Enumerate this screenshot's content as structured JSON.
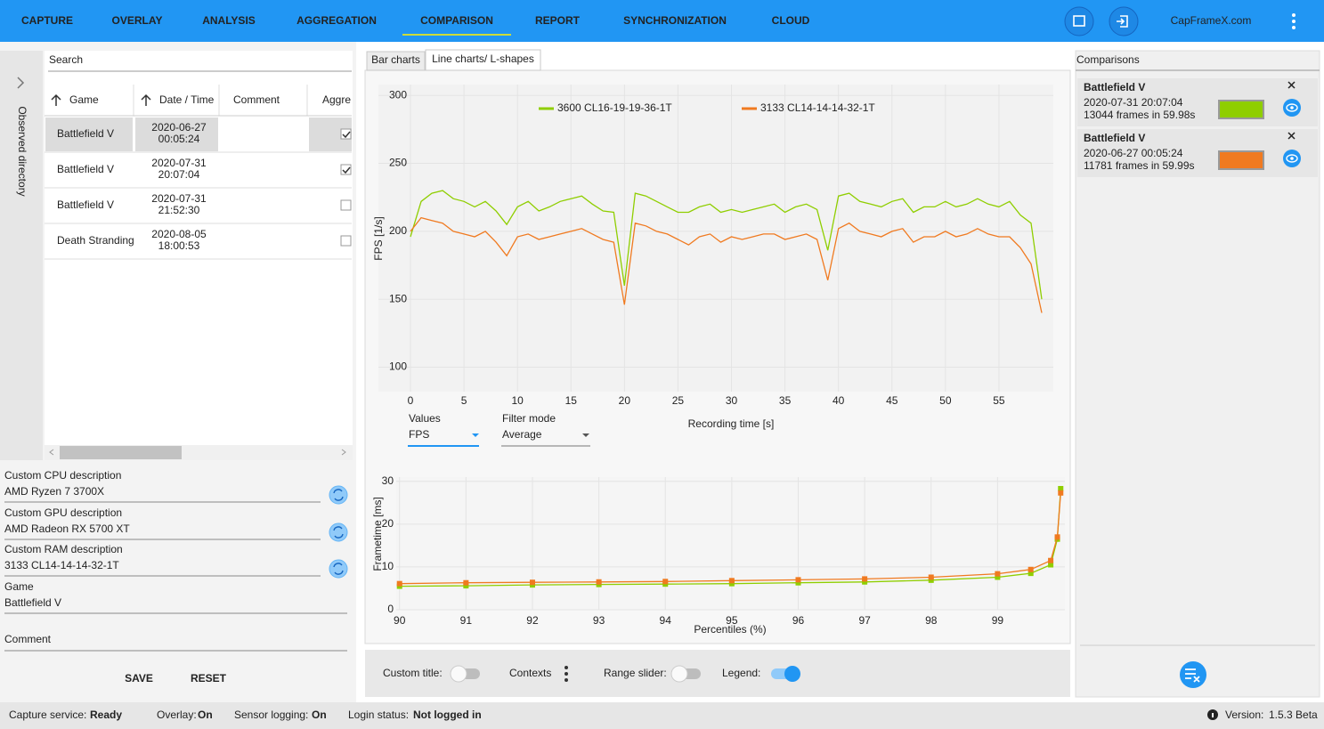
{
  "nav": {
    "tabs": [
      "CAPTURE",
      "OVERLAY",
      "ANALYSIS",
      "AGGREGATION",
      "COMPARISON",
      "REPORT",
      "SYNCHRONIZATION",
      "CLOUD"
    ],
    "active": 4,
    "brand": "CapFrameX.com"
  },
  "left": {
    "side_label": "Observed directory",
    "search": "Search",
    "columns": [
      "Game",
      "Date / Time",
      "Comment",
      "Aggre"
    ],
    "selected_row": 0,
    "rows": [
      {
        "game": "Battlefield V",
        "date": "2020-06-27",
        "time": "00:05:24",
        "checked": true
      },
      {
        "game": "Battlefield V",
        "date": "2020-07-31",
        "time": "20:07:04",
        "checked": true
      },
      {
        "game": "Battlefield V",
        "date": "2020-07-31",
        "time": "21:52:30",
        "checked": false
      },
      {
        "game": "Death Stranding",
        "date": "2020-08-05",
        "time": "18:00:53",
        "checked": false
      }
    ],
    "fields": [
      {
        "label": "Custom CPU description",
        "value": "AMD Ryzen 7 3700X"
      },
      {
        "label": "Custom GPU description",
        "value": "AMD Radeon RX 5700 XT"
      },
      {
        "label": "Custom RAM description",
        "value": "3133 CL14-14-14-32-1T"
      },
      {
        "label": "Game",
        "value": "Battlefield V"
      }
    ],
    "comment_placeholder": "Comment",
    "buttons": [
      "SAVE",
      "RESET"
    ]
  },
  "center": {
    "tabs": [
      "Bar charts",
      "Line charts/ L-shapes"
    ],
    "active_tab": 1,
    "values_label": "Values",
    "values_choice": "FPS",
    "filter_label": "Filter mode",
    "filter_choice": "Average",
    "toolbar": {
      "custom_title": {
        "label": "Custom title:",
        "on": false
      },
      "contexts": "Contexts",
      "range_slider": {
        "label": "Range slider:",
        "on": false
      },
      "legend": {
        "label": "Legend:",
        "on": true
      }
    }
  },
  "chart_data": [
    {
      "type": "line",
      "xlabel": "Recording time [s]",
      "ylabel": "FPS [1/s]",
      "legend": "top",
      "grid": true,
      "x": [
        0,
        1,
        2,
        3,
        4,
        5,
        6,
        7,
        8,
        9,
        10,
        11,
        12,
        13,
        14,
        15,
        16,
        17,
        18,
        19,
        20,
        21,
        22,
        23,
        24,
        25,
        26,
        27,
        28,
        29,
        30,
        31,
        32,
        33,
        34,
        35,
        36,
        37,
        38,
        39,
        40,
        41,
        42,
        43,
        44,
        45,
        46,
        47,
        48,
        49,
        50,
        51,
        52,
        53,
        54,
        55,
        56,
        57,
        58,
        59
      ],
      "xlim": [
        0,
        60
      ],
      "xticks": [
        0,
        5,
        10,
        15,
        20,
        25,
        30,
        35,
        40,
        45,
        50,
        55
      ],
      "ylim": [
        82,
        308
      ],
      "yticks": [
        100,
        150,
        200,
        250,
        300
      ],
      "series": [
        {
          "name": "3600 CL16-19-19-36-1T",
          "color": "#8fce00",
          "values": [
            196,
            222,
            228,
            230,
            224,
            222,
            218,
            222,
            215,
            205,
            218,
            222,
            215,
            218,
            222,
            224,
            226,
            220,
            215,
            214,
            160,
            228,
            226,
            222,
            218,
            214,
            214,
            218,
            220,
            214,
            216,
            214,
            216,
            218,
            220,
            214,
            218,
            220,
            216,
            186,
            226,
            228,
            222,
            220,
            218,
            222,
            224,
            214,
            218,
            218,
            222,
            218,
            220,
            224,
            220,
            218,
            222,
            212,
            206,
            150
          ]
        },
        {
          "name": "3133 CL14-14-14-32-1T",
          "color": "#f07a20",
          "values": [
            200,
            210,
            208,
            206,
            200,
            198,
            196,
            200,
            192,
            182,
            196,
            198,
            194,
            196,
            198,
            200,
            202,
            198,
            194,
            192,
            146,
            206,
            204,
            200,
            198,
            194,
            190,
            196,
            198,
            192,
            196,
            194,
            196,
            198,
            198,
            194,
            196,
            198,
            194,
            164,
            202,
            206,
            200,
            198,
            196,
            200,
            202,
            192,
            196,
            196,
            200,
            196,
            198,
            202,
            198,
            196,
            196,
            188,
            176,
            140
          ]
        }
      ]
    },
    {
      "type": "line",
      "markers": true,
      "xlabel": "Percentiles (%)",
      "ylabel": "Frametime [ms]",
      "grid": true,
      "x": [
        90,
        91,
        92,
        93,
        94,
        95,
        96,
        97,
        98,
        99,
        99.5,
        99.8,
        99.9,
        99.95
      ],
      "xlim": [
        89.95,
        100
      ],
      "xticks": [
        90,
        91,
        92,
        93,
        94,
        95,
        96,
        97,
        98,
        99
      ],
      "ylim": [
        0,
        31
      ],
      "yticks": [
        0,
        10,
        20,
        30
      ],
      "series": [
        {
          "color": "#8fce00",
          "values": [
            5.5,
            5.6,
            5.8,
            5.9,
            6.0,
            6.1,
            6.3,
            6.5,
            6.9,
            7.6,
            8.5,
            10.5,
            16.5,
            28.3
          ]
        },
        {
          "color": "#f07a20",
          "values": [
            6.1,
            6.3,
            6.4,
            6.5,
            6.6,
            6.8,
            7.0,
            7.2,
            7.6,
            8.4,
            9.4,
            11.5,
            17,
            27.3
          ]
        }
      ]
    }
  ],
  "comparisons": {
    "title": "Comparisons",
    "items": [
      {
        "game": "Battlefield V",
        "datetime": "2020-07-31 20:07:04",
        "frames": "13044 frames in 59.98s",
        "color": "#8fce00"
      },
      {
        "game": "Battlefield V",
        "datetime": "2020-06-27 00:05:24",
        "frames": "11781 frames in 59.99s",
        "color": "#f07a20"
      }
    ]
  },
  "status": {
    "items": [
      {
        "label": "Capture service:",
        "value": "Ready",
        "color": "#43a047"
      },
      {
        "label": "Overlay:",
        "value": "On",
        "color": "#43a047"
      },
      {
        "label": "Sensor logging:",
        "value": "On",
        "color": "#43a047"
      },
      {
        "label": "Login status:",
        "value": "Not logged in",
        "color": "#f4511e"
      }
    ],
    "version_label": "Version:",
    "version": "1.5.3 Beta"
  }
}
